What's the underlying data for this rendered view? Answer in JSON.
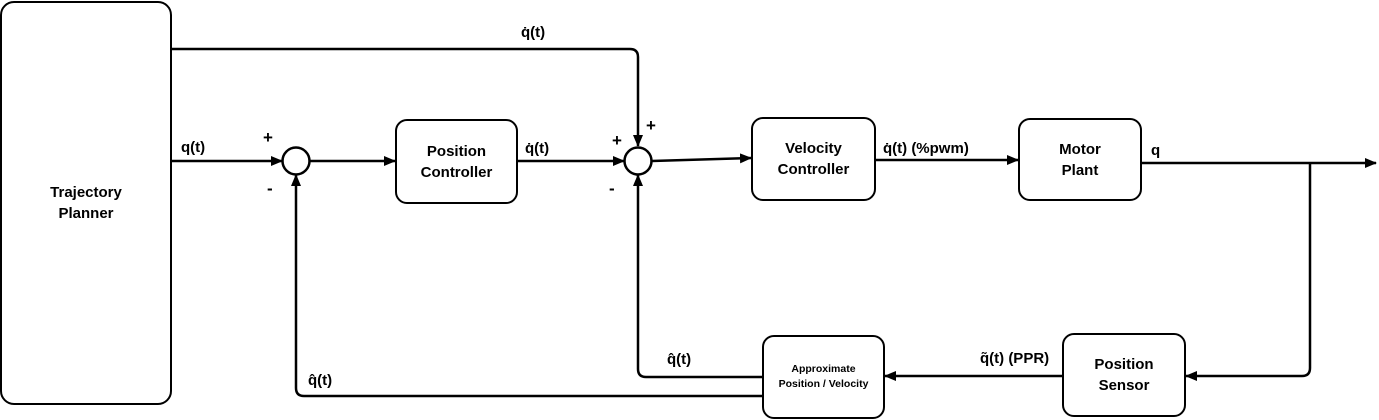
{
  "blocks": {
    "trajectory_planner": "Trajectory\nPlanner",
    "position_controller": "Position\nController",
    "velocity_controller": "Velocity\nController",
    "motor_plant": "Motor\nPlant",
    "position_sensor": "Position\nSensor",
    "approx_estimator": "Approximate\nPosition / Velocity"
  },
  "signals": {
    "q_ref": "q(t)",
    "qdot_feedforward": "q̇(t)",
    "qdot_position_out": "q̇(t)",
    "qdot_pwm": "q̇(t) (%pwm)",
    "q_out": "q",
    "q_sensor": "q̃(t) (PPR)",
    "qhat_velocity_fb": "q̂(t)",
    "qhat_position_fb": "q̂(t)"
  },
  "summing_junctions": {
    "position_sum": {
      "plus": "+",
      "minus": "-"
    },
    "velocity_sum": {
      "plus_left": "+",
      "plus_top": "+",
      "minus": "-"
    }
  }
}
